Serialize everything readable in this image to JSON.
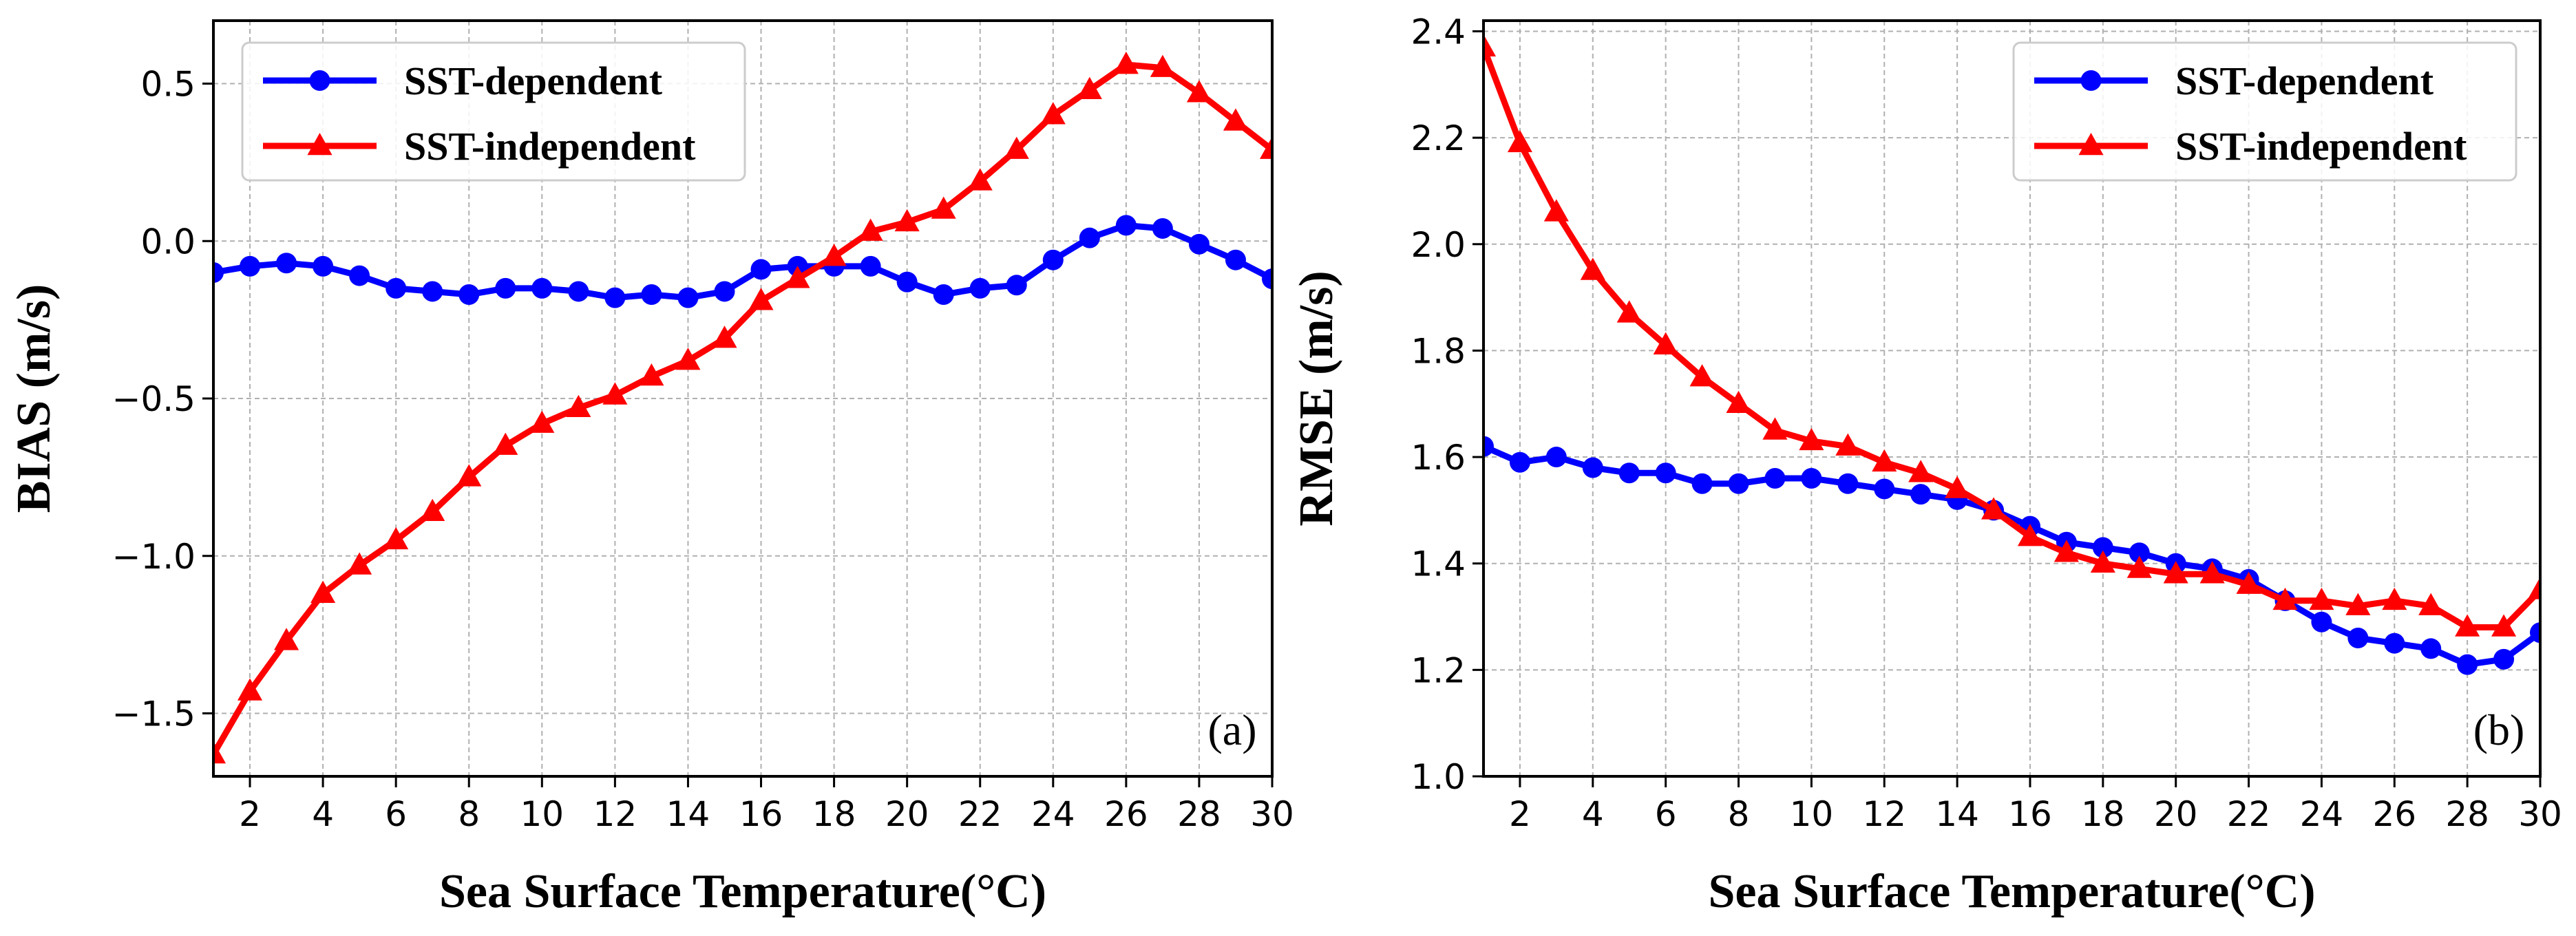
{
  "chart_data": [
    {
      "type": "line",
      "panel": "(a)",
      "xlabel": "Sea Surface Temperature(°C)",
      "ylabel": "BIAS (m/s)",
      "xlim": [
        1,
        30
      ],
      "ylim": [
        -1.7,
        0.7
      ],
      "xticks": [
        2,
        4,
        6,
        8,
        10,
        12,
        14,
        16,
        18,
        20,
        22,
        24,
        26,
        28,
        30
      ],
      "yticks": [
        -1.5,
        -1.0,
        -0.5,
        0.0,
        0.5
      ],
      "ytick_labels": [
        "−1.5",
        "−1.0",
        "−0.5",
        "0.0",
        "0.5"
      ],
      "grid": true,
      "legend_position": "top-left",
      "x": [
        1,
        2,
        3,
        4,
        5,
        6,
        7,
        8,
        9,
        10,
        11,
        12,
        13,
        14,
        15,
        16,
        17,
        18,
        19,
        20,
        21,
        22,
        23,
        24,
        25,
        26,
        27,
        28,
        29,
        30
      ],
      "series": [
        {
          "name": "SST-dependent",
          "color": "#0000ff",
          "marker": "circle",
          "values": [
            -0.1,
            -0.08,
            -0.07,
            -0.08,
            -0.11,
            -0.15,
            -0.16,
            -0.17,
            -0.15,
            -0.15,
            -0.16,
            -0.18,
            -0.17,
            -0.18,
            -0.16,
            -0.09,
            -0.08,
            -0.08,
            -0.08,
            -0.13,
            -0.17,
            -0.15,
            -0.14,
            -0.06,
            0.01,
            0.05,
            0.04,
            -0.01,
            -0.06,
            -0.12
          ]
        },
        {
          "name": "SST-independent",
          "color": "#ff0000",
          "marker": "triangle",
          "values": [
            -1.63,
            -1.43,
            -1.27,
            -1.12,
            -1.03,
            -0.95,
            -0.86,
            -0.75,
            -0.65,
            -0.58,
            -0.53,
            -0.49,
            -0.43,
            -0.38,
            -0.31,
            -0.19,
            -0.12,
            -0.05,
            0.03,
            0.06,
            0.1,
            0.19,
            0.29,
            0.4,
            0.48,
            0.56,
            0.55,
            0.47,
            0.38,
            0.29
          ]
        }
      ]
    },
    {
      "type": "line",
      "panel": "(b)",
      "xlabel": "Sea Surface Temperature(°C)",
      "ylabel": "RMSE (m/s)",
      "xlim": [
        1,
        30
      ],
      "ylim": [
        1.0,
        2.42
      ],
      "xticks": [
        2,
        4,
        6,
        8,
        10,
        12,
        14,
        16,
        18,
        20,
        22,
        24,
        26,
        28,
        30
      ],
      "yticks": [
        1.0,
        1.2,
        1.4,
        1.6,
        1.8,
        2.0,
        2.2,
        2.4
      ],
      "ytick_labels": [
        "1.0",
        "1.2",
        "1.4",
        "1.6",
        "1.8",
        "2.0",
        "2.2",
        "2.4"
      ],
      "grid": true,
      "legend_position": "top-right",
      "x": [
        1,
        2,
        3,
        4,
        5,
        6,
        7,
        8,
        9,
        10,
        11,
        12,
        13,
        14,
        15,
        16,
        17,
        18,
        19,
        20,
        21,
        22,
        23,
        24,
        25,
        26,
        27,
        28,
        29,
        30
      ],
      "series": [
        {
          "name": "SST-dependent",
          "color": "#0000ff",
          "marker": "circle",
          "values": [
            1.62,
            1.59,
            1.6,
            1.58,
            1.57,
            1.57,
            1.55,
            1.55,
            1.56,
            1.56,
            1.55,
            1.54,
            1.53,
            1.52,
            1.5,
            1.47,
            1.44,
            1.43,
            1.42,
            1.4,
            1.39,
            1.37,
            1.33,
            1.29,
            1.26,
            1.25,
            1.24,
            1.21,
            1.22,
            1.27
          ]
        },
        {
          "name": "SST-independent",
          "color": "#ff0000",
          "marker": "triangle",
          "values": [
            2.37,
            2.19,
            2.06,
            1.95,
            1.87,
            1.81,
            1.75,
            1.7,
            1.65,
            1.63,
            1.62,
            1.59,
            1.57,
            1.54,
            1.5,
            1.45,
            1.42,
            1.4,
            1.39,
            1.38,
            1.38,
            1.36,
            1.33,
            1.33,
            1.32,
            1.33,
            1.32,
            1.28,
            1.28,
            1.35
          ]
        }
      ]
    }
  ]
}
